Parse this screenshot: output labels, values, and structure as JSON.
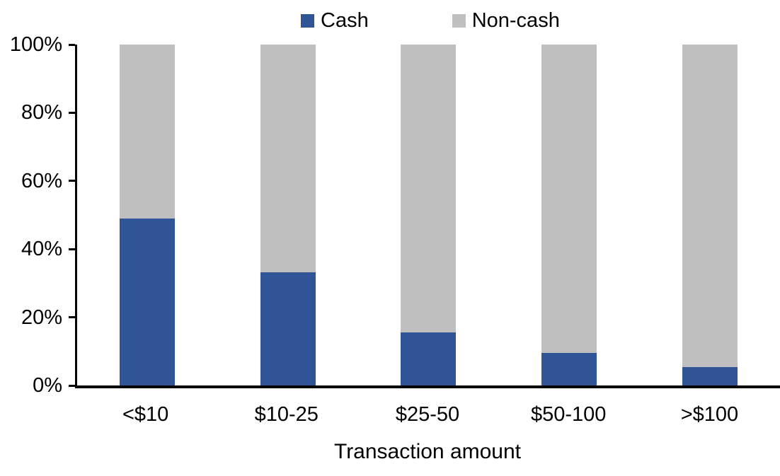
{
  "chart_data": {
    "type": "bar",
    "variant": "stacked-100",
    "title": "",
    "xlabel": "Transaction amount",
    "ylabel": "",
    "categories": [
      "<$10",
      "$10-25",
      "$25-50",
      "$50-100",
      ">$100"
    ],
    "series": [
      {
        "name": "Cash",
        "color": "#2F5597",
        "values": [
          49,
          33.3,
          15.6,
          9.6,
          5.4
        ]
      },
      {
        "name": "Non-cash",
        "color": "#BFBFBF",
        "values": [
          51,
          66.7,
          84.4,
          90.4,
          94.6
        ]
      }
    ],
    "ylim": [
      0,
      100
    ],
    "y_ticks": [
      0,
      20,
      40,
      60,
      80,
      100
    ],
    "y_tick_labels": [
      "0%",
      "20%",
      "40%",
      "60%",
      "80%",
      "100%"
    ],
    "grid": false,
    "legend_position": "top",
    "axis_color": "#000000",
    "background_color": "#FFFFFF",
    "text_color": "#000000"
  }
}
